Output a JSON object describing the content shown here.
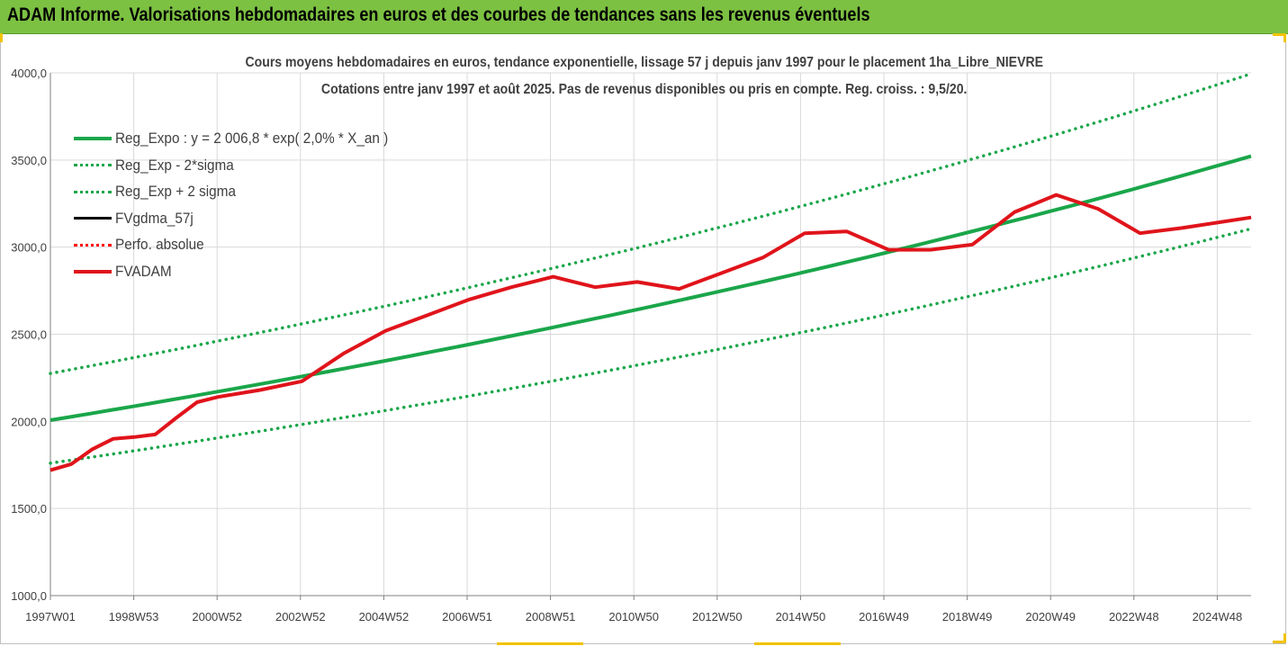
{
  "header": {
    "title": "ADAM Informe. Valorisations hebdomadaires en euros et des courbes de tendances sans les revenus éventuels"
  },
  "chart_data": {
    "type": "line",
    "title": "Cours moyens hebdomadaires en euros, tendance exponentielle, lissage 57 j depuis janv 1997 pour le placement 1ha_Libre_NIEVRE",
    "subtitle": "Cotations entre janv 1997 et août 2025.  Pas de revenus disponibles ou pris en compte. Reg. croiss. : 9,5/20.",
    "xlabel": "",
    "ylabel": "",
    "ylim": [
      1000,
      4000
    ],
    "yticks": [
      "1000,0",
      "1500,0",
      "2000,0",
      "2500,0",
      "3000,0",
      "3500,0",
      "4000,0"
    ],
    "xticks": [
      "1997W01",
      "1998W53",
      "2000W52",
      "2002W52",
      "2004W52",
      "2006W51",
      "2008W51",
      "2010W50",
      "2012W50",
      "2014W50",
      "2016W49",
      "2018W49",
      "2020W49",
      "2022W48",
      "2024W48"
    ],
    "xlim": [
      1997.0,
      2025.65
    ],
    "grid": true,
    "legend_position": "top-left",
    "series": [
      {
        "name": "Reg_Expo : y = 2 006,8 * exp( 2,0% *  X_an )",
        "color": "#1aa64a",
        "style": "solid",
        "x": [
          1997.0,
          2025.65
        ],
        "y": [
          2006.8,
          3522
        ]
      },
      {
        "name": "Reg_Exp - 2*sigma",
        "color": "#1aa64a",
        "style": "dotted",
        "x": [
          1997.0,
          2025.65
        ],
        "y": [
          1760,
          3105
        ]
      },
      {
        "name": "Reg_Exp + 2 sigma",
        "color": "#1aa64a",
        "style": "dotted",
        "x": [
          1997.0,
          2025.65
        ],
        "y": [
          2275,
          3995
        ]
      },
      {
        "name": "FVgdma_57j",
        "color": "#000000",
        "style": "solid",
        "x": [
          1997.0,
          1997.5,
          1998.0,
          1998.5,
          1999.0,
          1999.5,
          2000.0,
          2000.5,
          2001.0,
          2002.0,
          2003.0,
          2004.0,
          2005.0,
          2006.0,
          2007.0,
          2008.0,
          2009.0,
          2010.0,
          2011.0,
          2012.0,
          2013.0,
          2014.0,
          2015.0,
          2016.0,
          2017.0,
          2018.0,
          2019.0,
          2020.0,
          2021.0,
          2022.0,
          2023.0,
          2024.0,
          2025.65
        ],
        "y": [
          1720,
          1755,
          1840,
          1900,
          1910,
          1925,
          2020,
          2110,
          2140,
          2180,
          2230,
          2390,
          2520,
          2610,
          2700,
          2770,
          2830,
          2770,
          2800,
          2760,
          2850,
          2940,
          3080,
          3090,
          2985,
          2985,
          3015,
          3200,
          3300,
          3220,
          3080,
          3110,
          3170
        ]
      },
      {
        "name": "Perfo. absolue",
        "color": "#ff0000",
        "style": "dotted",
        "x": [],
        "y": []
      },
      {
        "name": "FVADAM",
        "color": "#e0141b",
        "style": "solid",
        "x": [
          1997.0,
          1997.5,
          1998.0,
          1998.5,
          1999.0,
          1999.5,
          2000.0,
          2000.5,
          2001.0,
          2002.0,
          2003.0,
          2004.0,
          2005.0,
          2006.0,
          2007.0,
          2008.0,
          2009.0,
          2010.0,
          2011.0,
          2012.0,
          2013.0,
          2014.0,
          2015.0,
          2016.0,
          2017.0,
          2018.0,
          2019.0,
          2020.0,
          2021.0,
          2022.0,
          2023.0,
          2024.0,
          2025.65
        ],
        "y": [
          1720,
          1755,
          1840,
          1900,
          1910,
          1925,
          2020,
          2110,
          2140,
          2180,
          2230,
          2390,
          2520,
          2610,
          2700,
          2770,
          2830,
          2770,
          2800,
          2760,
          2850,
          2940,
          3080,
          3090,
          2985,
          2985,
          3015,
          3200,
          3300,
          3220,
          3080,
          3110,
          3170
        ]
      }
    ]
  }
}
